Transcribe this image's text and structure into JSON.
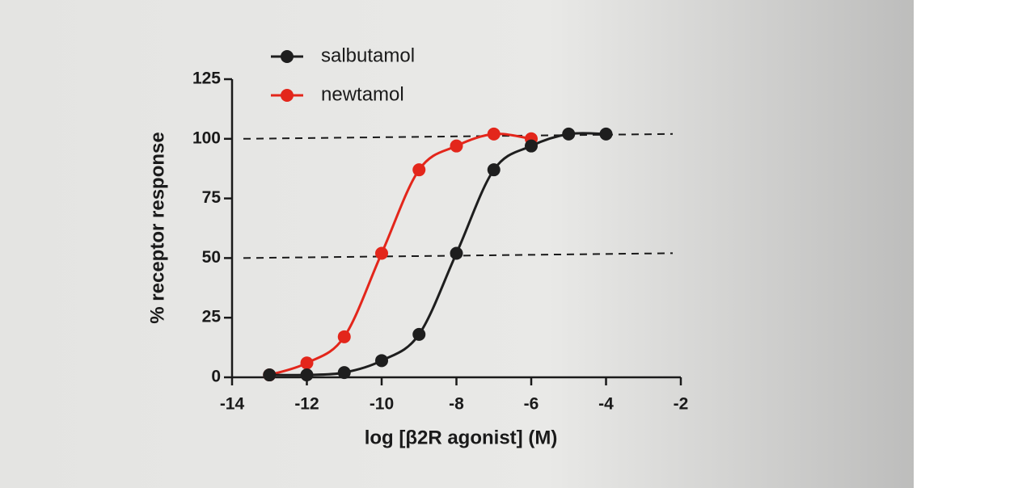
{
  "chart_data": {
    "type": "line",
    "x_label": "log [β2R agonist] (M)",
    "y_label": "% receptor response",
    "xlim": [
      -14,
      -2
    ],
    "xticks": [
      -14,
      -12,
      -10,
      -8,
      -6,
      -4,
      -2
    ],
    "ylim": [
      0,
      125
    ],
    "yticks": [
      0,
      25,
      50,
      75,
      100,
      125
    ],
    "reference_lines": [
      100,
      50
    ],
    "legend": "top-left",
    "series": [
      {
        "name": "salbutamol",
        "color": "#1e1e1e",
        "x": [
          -13,
          -12,
          -11,
          -10,
          -9,
          -8,
          -7,
          -6,
          -5,
          -4
        ],
        "values": [
          1,
          1,
          2,
          7,
          18,
          52,
          87,
          97,
          102,
          102
        ]
      },
      {
        "name": "newtamol",
        "color": "#e3261b",
        "x": [
          -13,
          -12,
          -11,
          -10,
          -9,
          -8,
          -7,
          -6
        ],
        "values": [
          1,
          6,
          17,
          52,
          87,
          97,
          102,
          100
        ]
      }
    ]
  }
}
